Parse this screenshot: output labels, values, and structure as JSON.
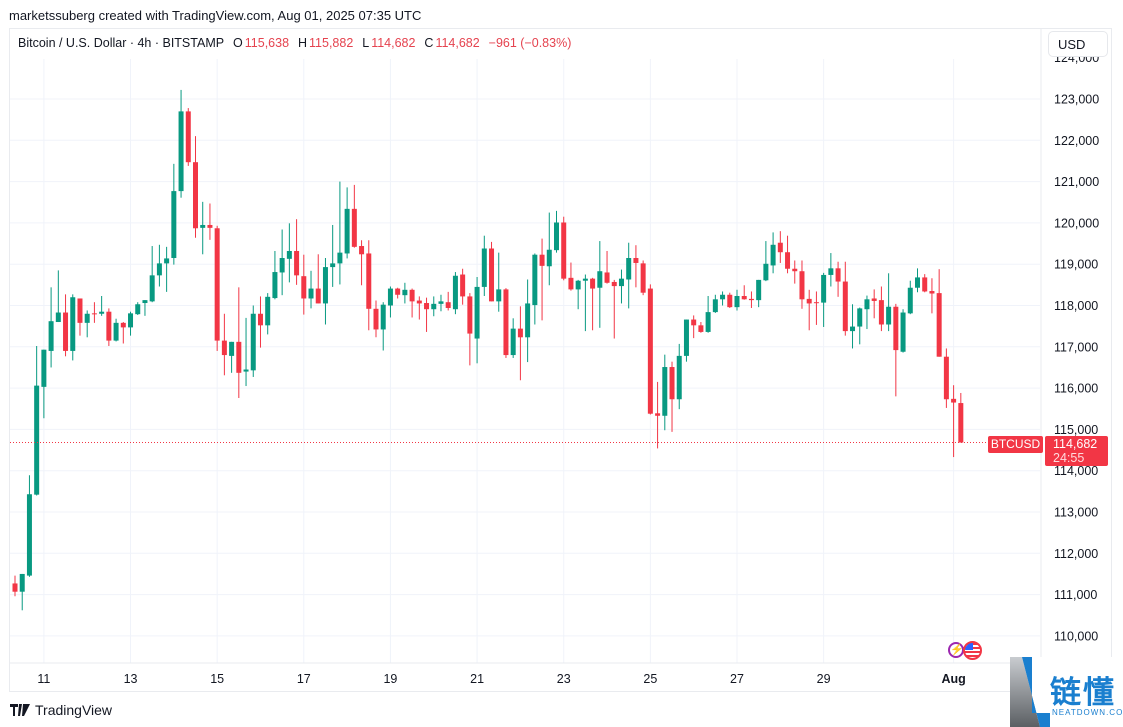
{
  "credit": "marketssuberg created with TradingView.com, Aug 01, 2025 07:35 UTC",
  "legend": {
    "symbol": "Bitcoin / U.S. Dollar · 4h · BITSTAMP",
    "o_label": "O",
    "o": "115,638",
    "h_label": "H",
    "h": "115,882",
    "l_label": "L",
    "l": "114,682",
    "c_label": "C",
    "c": "114,682",
    "change": "−961 (−0.83%)"
  },
  "currency_button": "USD",
  "price_tag": {
    "symbol": "BTCUSD",
    "price": "114,682",
    "countdown": "24:55"
  },
  "footer": {
    "brand": "TradingView"
  },
  "watermark": {
    "name": "链懂",
    "site": "NEATDOWN.COM"
  },
  "colors": {
    "up": "#089981",
    "down": "#f23645",
    "grid": "#f0f3fa",
    "text": "#131722"
  },
  "chart_data": {
    "type": "candlestick",
    "interval": "4h",
    "ylim": [
      109500,
      124200
    ],
    "y_ticks": [
      "124,000",
      "123,000",
      "122,000",
      "121,000",
      "120,000",
      "119,000",
      "118,000",
      "117,000",
      "116,000",
      "115,000",
      "114,000",
      "113,000",
      "112,000",
      "111,000",
      "110,000"
    ],
    "x_ticks": [
      "11",
      "13",
      "15",
      "17",
      "19",
      "21",
      "23",
      "25",
      "27",
      "29",
      "Aug"
    ],
    "grid": true,
    "last_price": 114682,
    "ohlc": [
      [
        111270,
        111460,
        110960,
        111070
      ],
      [
        111070,
        111500,
        110620,
        111500
      ],
      [
        111460,
        113890,
        111430,
        113430
      ],
      [
        113420,
        117020,
        113400,
        116060
      ],
      [
        116030,
        116930,
        115270,
        116930
      ],
      [
        116900,
        118440,
        116500,
        117620
      ],
      [
        117600,
        118850,
        117600,
        117830
      ],
      [
        117830,
        118270,
        116770,
        116900
      ],
      [
        116900,
        118270,
        116670,
        118200
      ],
      [
        118170,
        118170,
        117270,
        117580
      ],
      [
        117580,
        117880,
        117230,
        117800
      ],
      [
        117810,
        118080,
        117580,
        117800
      ],
      [
        117800,
        118230,
        117750,
        117850
      ],
      [
        117850,
        117930,
        117020,
        117150
      ],
      [
        117150,
        117680,
        117130,
        117580
      ],
      [
        117580,
        117600,
        117080,
        117470
      ],
      [
        117470,
        117850,
        117270,
        117810
      ],
      [
        117790,
        118080,
        117770,
        118030
      ],
      [
        118060,
        118130,
        117750,
        118130
      ],
      [
        118100,
        119440,
        118080,
        118730
      ],
      [
        118730,
        119470,
        118460,
        119020
      ],
      [
        119020,
        119420,
        118330,
        119140
      ],
      [
        119150,
        121430,
        118990,
        120770
      ],
      [
        120770,
        123220,
        120610,
        122700
      ],
      [
        122700,
        122780,
        121380,
        121470
      ],
      [
        121470,
        122100,
        119640,
        119870
      ],
      [
        119880,
        120510,
        119240,
        119950
      ],
      [
        119950,
        120470,
        119590,
        119880
      ],
      [
        119870,
        119930,
        116900,
        117150
      ],
      [
        117150,
        117800,
        116310,
        116800
      ],
      [
        116780,
        117120,
        116370,
        117120
      ],
      [
        117120,
        118440,
        115760,
        116370
      ],
      [
        116400,
        117700,
        116050,
        116450
      ],
      [
        116430,
        118000,
        116270,
        117800
      ],
      [
        117800,
        118220,
        116980,
        117520
      ],
      [
        117520,
        118300,
        117300,
        118210
      ],
      [
        118180,
        119320,
        118150,
        118810
      ],
      [
        118800,
        119840,
        118250,
        119150
      ],
      [
        119130,
        119990,
        118560,
        119320
      ],
      [
        119320,
        120090,
        118500,
        118730
      ],
      [
        118710,
        119230,
        117780,
        118170
      ],
      [
        118170,
        118840,
        117930,
        118410
      ],
      [
        118410,
        119240,
        118050,
        118050
      ],
      [
        118050,
        119150,
        117540,
        118930
      ],
      [
        118930,
        119950,
        118450,
        119020
      ],
      [
        119020,
        121000,
        118510,
        119280
      ],
      [
        119260,
        120860,
        119140,
        120340
      ],
      [
        120340,
        120920,
        119400,
        119420
      ],
      [
        119440,
        119580,
        118490,
        119240
      ],
      [
        119260,
        119580,
        117400,
        117920
      ],
      [
        117920,
        118120,
        117230,
        117420
      ],
      [
        117420,
        118080,
        116910,
        118020
      ],
      [
        118000,
        118460,
        117710,
        118410
      ],
      [
        118410,
        118430,
        118170,
        118260
      ],
      [
        118250,
        118550,
        118050,
        118380
      ],
      [
        118380,
        118410,
        117710,
        118100
      ],
      [
        118120,
        118220,
        117660,
        118050
      ],
      [
        118060,
        118190,
        117360,
        117910
      ],
      [
        117910,
        118220,
        117740,
        118040
      ],
      [
        118040,
        118260,
        117860,
        118100
      ],
      [
        118080,
        118330,
        117880,
        117940
      ],
      [
        117910,
        118810,
        117790,
        118720
      ],
      [
        118750,
        118890,
        118020,
        118220
      ],
      [
        118220,
        118300,
        116550,
        117320
      ],
      [
        117200,
        118690,
        116600,
        118450
      ],
      [
        118450,
        119690,
        118230,
        119380
      ],
      [
        119380,
        119540,
        118100,
        118100
      ],
      [
        118100,
        119280,
        117850,
        118390
      ],
      [
        118390,
        118420,
        116730,
        116800
      ],
      [
        116800,
        117690,
        116730,
        117440
      ],
      [
        117440,
        117980,
        116190,
        117230
      ],
      [
        117230,
        118630,
        116630,
        118050
      ],
      [
        118010,
        119260,
        117540,
        119230
      ],
      [
        119230,
        119620,
        117640,
        118960
      ],
      [
        118950,
        120250,
        118490,
        119350
      ],
      [
        119340,
        120290,
        119280,
        120010
      ],
      [
        120010,
        120150,
        118610,
        118650
      ],
      [
        118670,
        119040,
        118360,
        118390
      ],
      [
        118390,
        118620,
        117910,
        118600
      ],
      [
        118600,
        118750,
        117380,
        118650
      ],
      [
        118650,
        118670,
        117400,
        118410
      ],
      [
        118430,
        119560,
        117460,
        118830
      ],
      [
        118800,
        119320,
        118530,
        118550
      ],
      [
        118570,
        118620,
        117200,
        118470
      ],
      [
        118470,
        118870,
        118050,
        118650
      ],
      [
        118630,
        119520,
        117930,
        119150
      ],
      [
        119150,
        119460,
        118440,
        119030
      ],
      [
        119020,
        119090,
        118250,
        118310
      ],
      [
        118410,
        118510,
        115360,
        115380
      ],
      [
        115390,
        116150,
        114540,
        115330
      ],
      [
        115330,
        116810,
        114980,
        116510
      ],
      [
        116510,
        116640,
        114940,
        115730
      ],
      [
        115730,
        117070,
        115490,
        116780
      ],
      [
        116780,
        117660,
        116640,
        117660
      ],
      [
        117660,
        117760,
        117210,
        117520
      ],
      [
        117520,
        117600,
        117340,
        117360
      ],
      [
        117360,
        118230,
        117340,
        117840
      ],
      [
        117840,
        118260,
        117820,
        118150
      ],
      [
        118150,
        118340,
        118000,
        118260
      ],
      [
        118260,
        118310,
        117940,
        117960
      ],
      [
        117960,
        118380,
        117880,
        118230
      ],
      [
        118230,
        118490,
        118140,
        118150
      ],
      [
        118160,
        118340,
        117940,
        118130
      ],
      [
        118130,
        118620,
        117960,
        118620
      ],
      [
        118610,
        119560,
        118590,
        119010
      ],
      [
        118970,
        119770,
        118780,
        119470
      ],
      [
        119520,
        119800,
        119030,
        119290
      ],
      [
        119290,
        119690,
        118780,
        118890
      ],
      [
        118890,
        119090,
        118530,
        118830
      ],
      [
        118830,
        119090,
        117920,
        118150
      ],
      [
        118160,
        118380,
        117400,
        118050
      ],
      [
        118080,
        118340,
        117530,
        118070
      ],
      [
        118070,
        118790,
        117480,
        118740
      ],
      [
        118740,
        119270,
        118460,
        118900
      ],
      [
        118900,
        119060,
        118210,
        118580
      ],
      [
        118580,
        119060,
        117270,
        117380
      ],
      [
        117380,
        118030,
        116960,
        117490
      ],
      [
        117490,
        117950,
        117060,
        117930
      ],
      [
        117910,
        118240,
        117430,
        118150
      ],
      [
        118170,
        118390,
        117690,
        118110
      ],
      [
        118130,
        118460,
        117380,
        117540
      ],
      [
        117540,
        118780,
        117380,
        117970
      ],
      [
        117970,
        118040,
        115800,
        116920
      ],
      [
        116880,
        117910,
        116860,
        117830
      ],
      [
        117810,
        118600,
        117790,
        118430
      ],
      [
        118430,
        118900,
        118320,
        118680
      ],
      [
        118680,
        118760,
        118320,
        118340
      ],
      [
        118350,
        118660,
        117810,
        118290
      ],
      [
        118300,
        118880,
        116760,
        116760
      ],
      [
        116760,
        116960,
        115520,
        115730
      ],
      [
        115740,
        116070,
        114330,
        115650
      ],
      [
        115638,
        115882,
        114682,
        114682
      ]
    ]
  }
}
